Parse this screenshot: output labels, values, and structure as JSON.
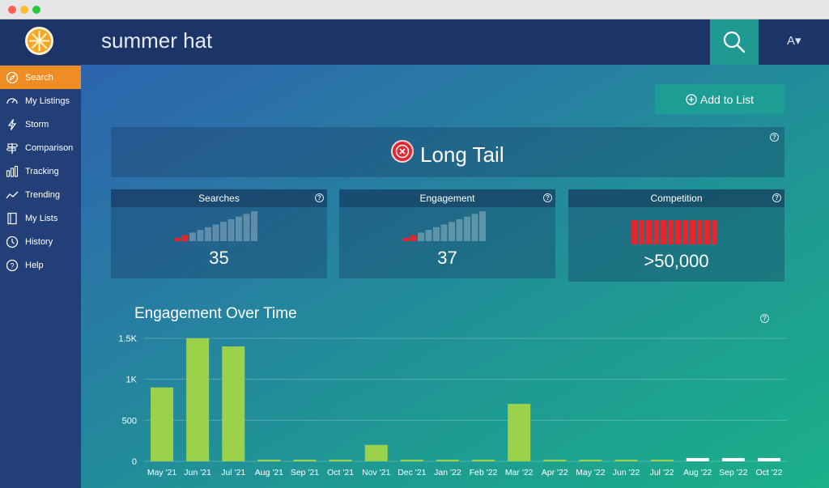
{
  "window": {
    "dots": [
      "#fe5f57",
      "#febc2e",
      "#28c840"
    ]
  },
  "header": {
    "query": "summer hat",
    "user_label": "A▾",
    "search_icon": "search-icon"
  },
  "sidebar": {
    "items": [
      {
        "label": "Search",
        "icon": "compass-icon",
        "active": true
      },
      {
        "label": "My Listings",
        "icon": "gauge-icon",
        "active": false
      },
      {
        "label": "Storm",
        "icon": "lightning-icon",
        "active": false
      },
      {
        "label": "Comparison",
        "icon": "signpost-icon",
        "active": false
      },
      {
        "label": "Tracking",
        "icon": "bar-chart-icon",
        "active": false
      },
      {
        "label": "Trending",
        "icon": "trend-line-icon",
        "active": false
      },
      {
        "label": "My Lists",
        "icon": "notebook-icon",
        "active": false
      },
      {
        "label": "History",
        "icon": "clock-icon",
        "active": false
      },
      {
        "label": "Help",
        "icon": "question-icon",
        "active": false
      }
    ]
  },
  "main": {
    "add_to_list": "Add to List",
    "verdict": "Long Tail",
    "metrics": [
      {
        "title": "Searches",
        "value": "35",
        "level_bars": 2
      },
      {
        "title": "Engagement",
        "value": "37",
        "level_bars": 2
      },
      {
        "title": "Competition",
        "value": ">50,000",
        "level_bars": 12
      }
    ]
  },
  "colors": {
    "accent": "#f08c24",
    "teal": "#1c9e94",
    "bar_green": "#9bd24a",
    "alert_red": "#e4262f"
  },
  "chart_data": {
    "type": "bar",
    "title": "Engagement Over Time",
    "categories": [
      "May '21",
      "Jun '21",
      "Jul '21",
      "Aug '21",
      "Sep '21",
      "Oct '21",
      "Nov '21",
      "Dec '21",
      "Jan '22",
      "Feb '22",
      "Mar '22",
      "Apr '22",
      "May '22",
      "Jun '22",
      "Jul '22",
      "Aug '22",
      "Sep '22",
      "Oct '22"
    ],
    "values": [
      900,
      1500,
      1400,
      20,
      20,
      20,
      200,
      20,
      20,
      20,
      700,
      20,
      20,
      20,
      20,
      40,
      40,
      40
    ],
    "estimated": [
      false,
      false,
      false,
      false,
      false,
      false,
      false,
      false,
      false,
      false,
      false,
      false,
      false,
      false,
      false,
      true,
      true,
      true
    ],
    "ylim": [
      0,
      1500
    ],
    "yticks": [
      0,
      500,
      1000,
      1500
    ],
    "ytick_labels": [
      "0",
      "500",
      "1K",
      "1.5K"
    ],
    "grid": true
  }
}
